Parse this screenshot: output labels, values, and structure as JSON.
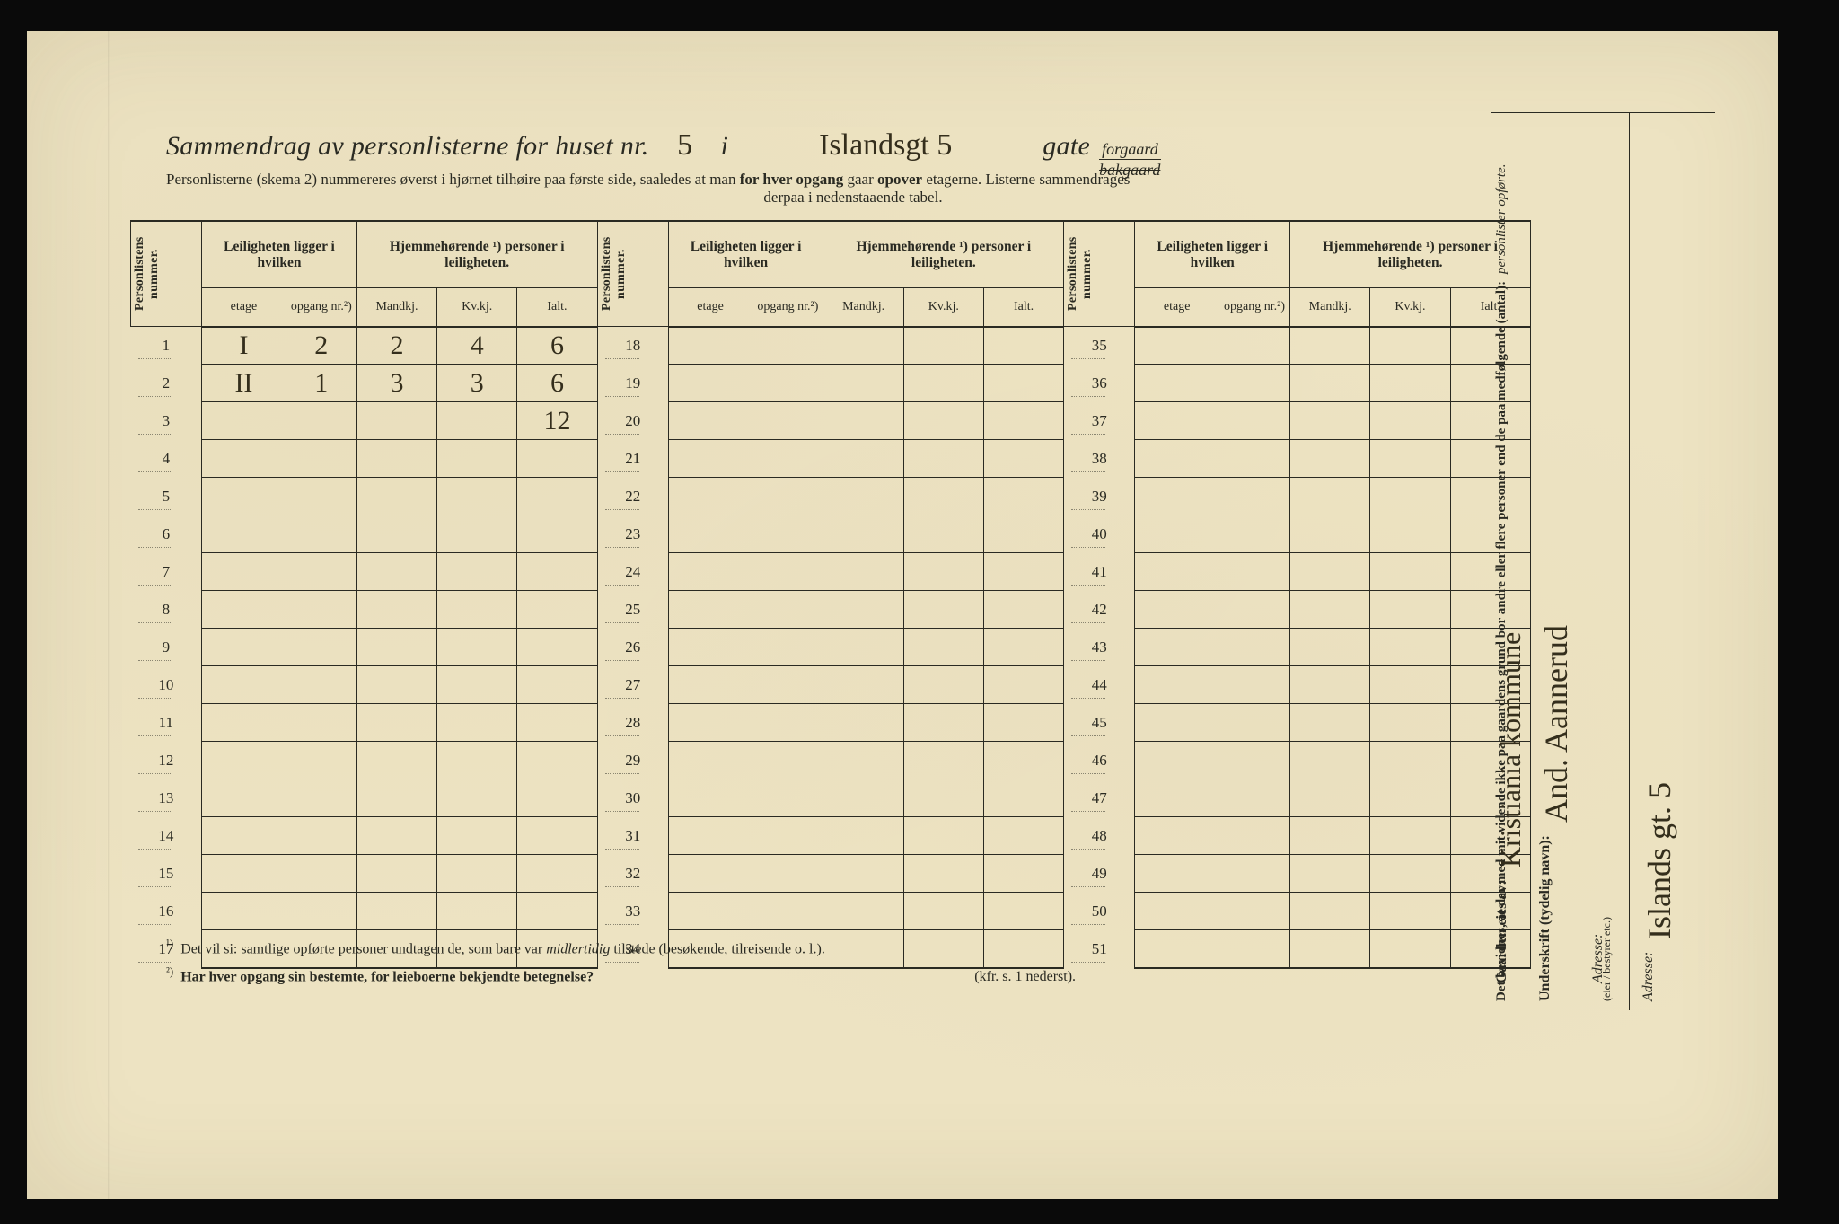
{
  "background_color": "#ede3c2",
  "ink_color": "#2a2a22",
  "handwriting_color": "#342e1c",
  "title": {
    "prefix": "Sammendrag av personlisterne for huset nr.",
    "house_nr": "5",
    "i_word": "i",
    "street_handwritten": "Islandsgt 5",
    "gate_word": "gate",
    "gate_options": {
      "top": "forgaard",
      "bottom": "bakgaard"
    }
  },
  "subtitle": {
    "line1": "Personlisterne (skema 2) nummereres øverst i hjørnet tilhøire paa første side, saaledes at man",
    "bold1": "for hver opgang",
    "line1b": "gaar",
    "bold2": "opover",
    "line1c": "etagerne.   Listerne sammendrages",
    "line2": "derpaa i nedenstaaende tabel."
  },
  "headers": {
    "personlistens_nummer": "Personlistens nummer.",
    "leiligheten": "Leiligheten ligger i hvilken",
    "hjemmehorende": "Hjemmehørende ¹) personer i leiligheten.",
    "etage": "etage",
    "opgang": "opgang nr.²)",
    "mandkj": "Mandkj.",
    "kvkj": "Kv.kj.",
    "ialt": "Ialt."
  },
  "rows_block1": [
    {
      "n": 1,
      "etage": "I",
      "opgang": "2",
      "m": "2",
      "k": "4",
      "ialt": "6"
    },
    {
      "n": 2,
      "etage": "II",
      "opgang": "1",
      "m": "3",
      "k": "3",
      "ialt": "6"
    },
    {
      "n": 3,
      "etage": "",
      "opgang": "",
      "m": "",
      "k": "",
      "ialt": "12"
    },
    {
      "n": 4
    },
    {
      "n": 5
    },
    {
      "n": 6
    },
    {
      "n": 7
    },
    {
      "n": 8
    },
    {
      "n": 9
    },
    {
      "n": 10
    },
    {
      "n": 11
    },
    {
      "n": 12
    },
    {
      "n": 13
    },
    {
      "n": 14
    },
    {
      "n": 15
    },
    {
      "n": 16
    },
    {
      "n": 17
    }
  ],
  "rows_block2_start": 18,
  "rows_block3_start": 35,
  "rows_per_block": 17,
  "footnotes": {
    "f1_label": "¹)",
    "f1": "Det vil si: samtlige opførte personer undtagen de, som bare var",
    "f1_italic": "midlertidig",
    "f1_tail": "tilstede (besøkende, tilreisende o. l.).",
    "f2_label": "²)",
    "f2": "Har hver opgang sin bestemte, for leieboerne bekjendte betegnelse?",
    "kfr": "(kfr. s. 1 nederst)."
  },
  "rightpanel": {
    "attest": "Det bevidnes, at der med mit vidende ikke paa gaardens grund bor andre eller flere personer end de paa medfølgende (antal):",
    "attest_tail": "personlister opførte.",
    "underskrift_label": "Underskrift (tydelig navn):",
    "signature": "And. Aannerud",
    "adresse_label": "Adresse:",
    "adresse_value": "Islands gt. 5",
    "bestyrer": "(eier / bestyrer etc.)"
  },
  "ownerpanel": {
    "label": "Gaarden eies av:",
    "value": "Kristiania kommune",
    "adresse_label": "Adresse:"
  }
}
